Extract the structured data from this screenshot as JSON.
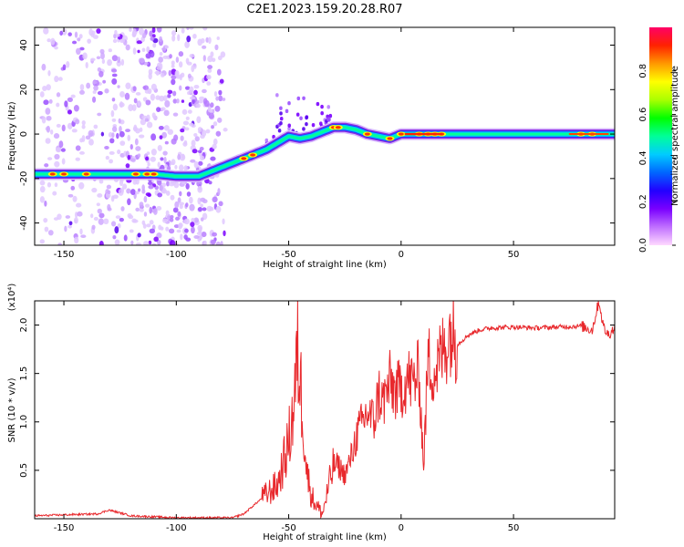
{
  "title": "C2E1.2023.159.20.28.R07",
  "colors": {
    "snr_line": "#e8282c",
    "track_core": "#00c8ff",
    "scatter": "#8a2be2",
    "colorbar_stops": [
      "#ffd9ff",
      "#c070ff",
      "#7a00ff",
      "#2200ff",
      "#0066ff",
      "#00ccff",
      "#00ff99",
      "#00ff00",
      "#aaff00",
      "#ffff00",
      "#ff9900",
      "#ff2200",
      "#ff0066"
    ]
  },
  "chart_data": [
    {
      "type": "heatmap",
      "xlabel": "Height of straight line (km)",
      "ylabel": "Frequency (Hz)",
      "xlim": [
        -163,
        95
      ],
      "ylim": [
        -50,
        48
      ],
      "xticks": [
        -150,
        -100,
        -50,
        0,
        50
      ],
      "yticks": [
        -40,
        -20,
        0,
        20,
        40
      ],
      "colorbar": {
        "label": "Normalized spectral amplitude",
        "range": [
          0,
          1
        ],
        "ticks": [
          "0.0",
          "0.2",
          "0.4",
          "0.6",
          "0.8"
        ]
      },
      "track": {
        "x": [
          -163,
          -150,
          -140,
          -130,
          -120,
          -110,
          -100,
          -90,
          -85,
          -80,
          -75,
          -70,
          -65,
          -60,
          -55,
          -50,
          -45,
          -40,
          -35,
          -30,
          -25,
          -20,
          -15,
          -10,
          -5,
          0,
          10,
          20,
          30,
          50,
          70,
          95
        ],
        "y": [
          -18,
          -18,
          -18,
          -18,
          -18,
          -18,
          -19,
          -19,
          -17,
          -15,
          -13,
          -11,
          -9,
          -7,
          -4,
          -1,
          -2,
          -1,
          1,
          3,
          3,
          2,
          0,
          -1,
          -2,
          0,
          0,
          0,
          0,
          0,
          0,
          0
        ]
      },
      "scatter_region": {
        "x_range": [
          -160,
          -78
        ],
        "plume_x_range": [
          -60,
          -30
        ],
        "plume_y_max": 20
      }
    },
    {
      "type": "line",
      "xlabel": "Height of straight line (km)",
      "ylabel": "SNR (10 * v/v)",
      "scale_label": "(x10⁴)",
      "xlim": [
        -163,
        95
      ],
      "ylim": [
        0,
        2.25
      ],
      "xticks": [
        -150,
        -100,
        -50,
        0,
        50
      ],
      "yticks": [
        0.5,
        1.0,
        1.5,
        2.0
      ],
      "x": [
        -163,
        -150,
        -135,
        -130,
        -120,
        -110,
        -100,
        -90,
        -80,
        -75,
        -70,
        -65,
        -60,
        -55,
        -52,
        -50,
        -48,
        -46,
        -44,
        -42,
        -40,
        -38,
        -35,
        -32,
        -30,
        -28,
        -25,
        -22,
        -20,
        -18,
        -15,
        -12,
        -10,
        -8,
        -5,
        -2,
        0,
        3,
        5,
        8,
        10,
        12,
        15,
        18,
        20,
        22,
        25,
        30,
        35,
        40,
        50,
        60,
        70,
        80,
        85,
        88,
        90,
        92,
        95
      ],
      "y": [
        0.03,
        0.04,
        0.05,
        0.09,
        0.03,
        0.02,
        0.01,
        0.01,
        0.01,
        0.01,
        0.05,
        0.15,
        0.25,
        0.35,
        0.6,
        0.8,
        1.1,
        1.7,
        1.2,
        0.5,
        0.25,
        0.15,
        0.05,
        0.35,
        0.55,
        0.55,
        0.45,
        0.65,
        0.85,
        0.95,
        1.1,
        1.0,
        1.3,
        1.2,
        1.4,
        1.3,
        1.35,
        1.45,
        1.4,
        1.5,
        0.55,
        1.65,
        1.5,
        1.7,
        1.8,
        1.95,
        1.8,
        1.9,
        1.95,
        1.97,
        1.98,
        1.97,
        1.98,
        1.99,
        1.95,
        2.25,
        1.98,
        1.9,
        1.97
      ]
    }
  ]
}
